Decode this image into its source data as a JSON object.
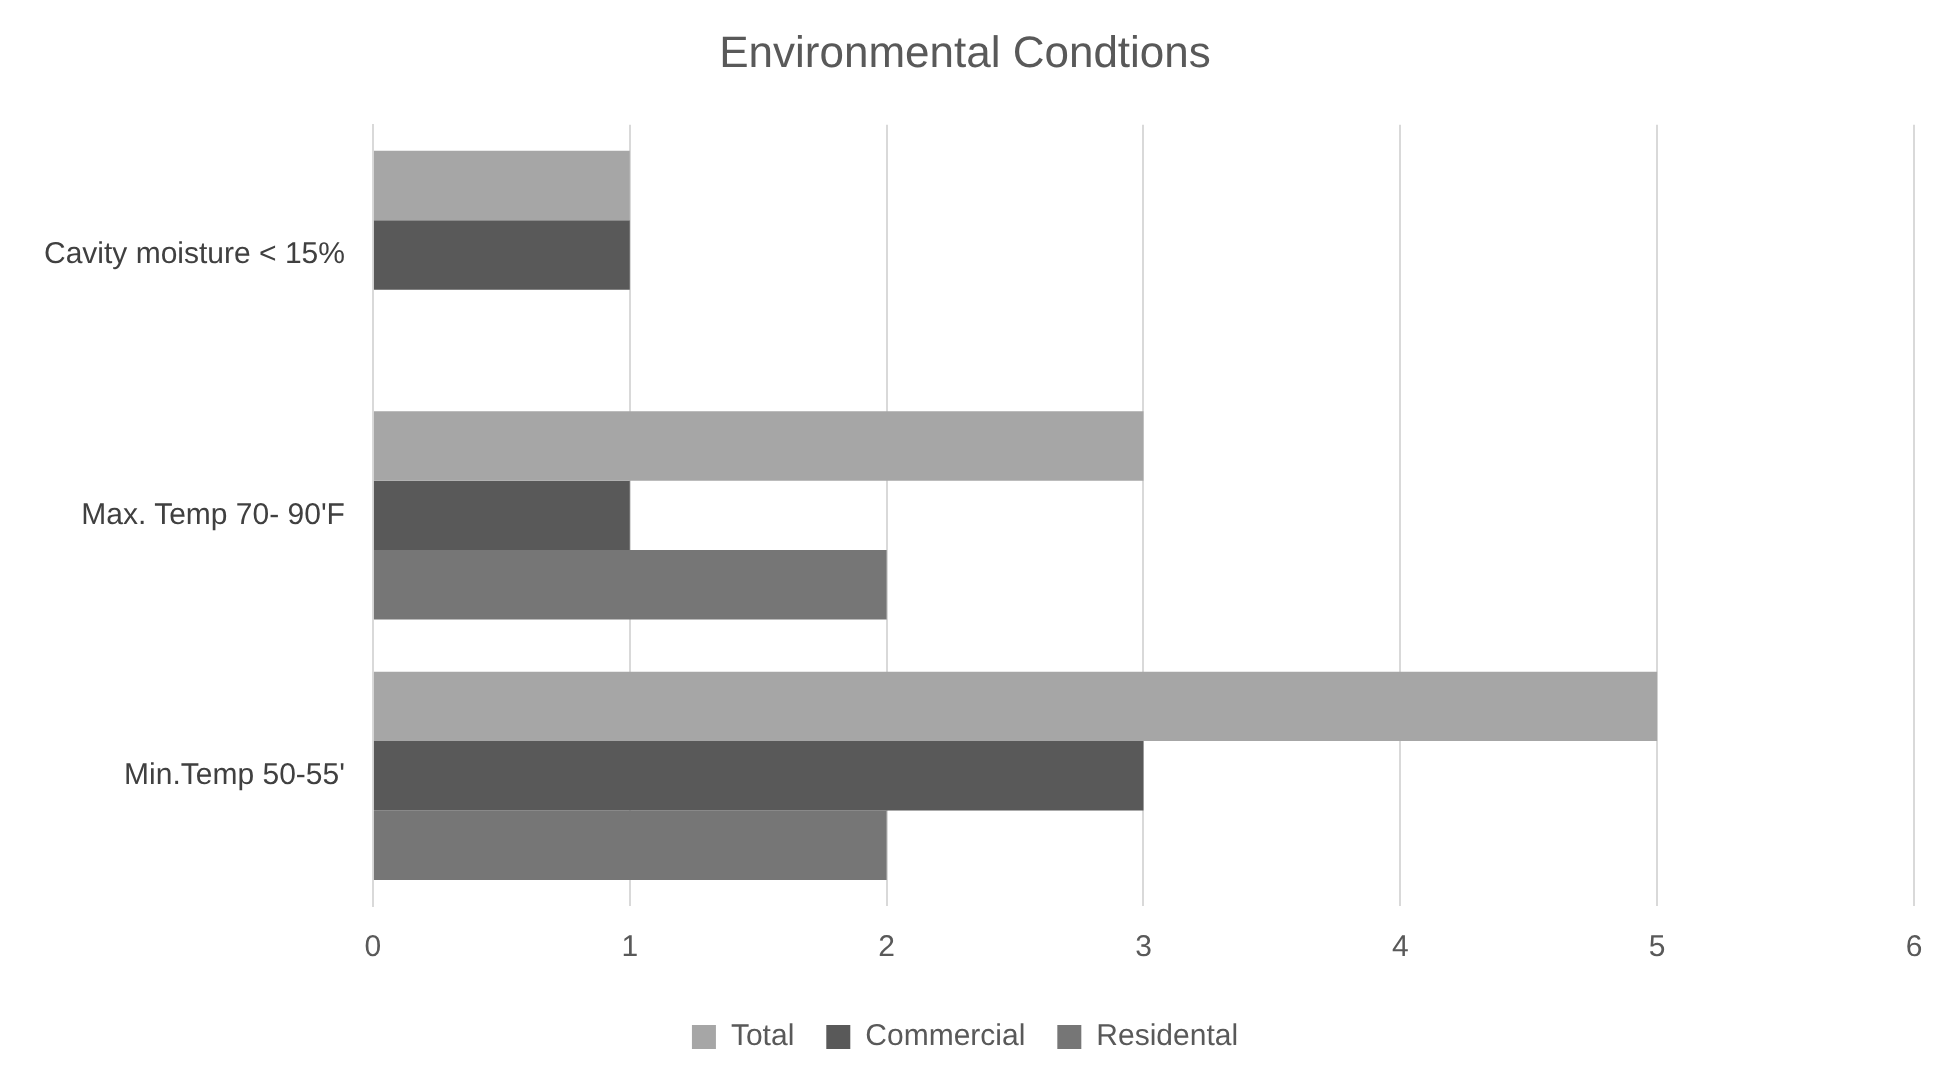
{
  "chart_data": {
    "type": "bar",
    "orientation": "horizontal",
    "title": "Environmental Condtions",
    "categories": [
      "Cavity moisture < 15%",
      "Max. Temp 70- 90'F",
      "Min.Temp 50-55'"
    ],
    "series": [
      {
        "name": "Total",
        "color": "#a6a6a6",
        "values": [
          1,
          3,
          5
        ]
      },
      {
        "name": "Commercial",
        "color": "#595959",
        "values": [
          1,
          1,
          3
        ]
      },
      {
        "name": "Residental",
        "color": "#767676",
        "values": [
          null,
          2,
          2
        ]
      }
    ],
    "xlim": [
      0,
      6
    ],
    "xticks": [
      0,
      1,
      2,
      3,
      4,
      5,
      6
    ],
    "grid": "x",
    "legend": "bottom"
  }
}
